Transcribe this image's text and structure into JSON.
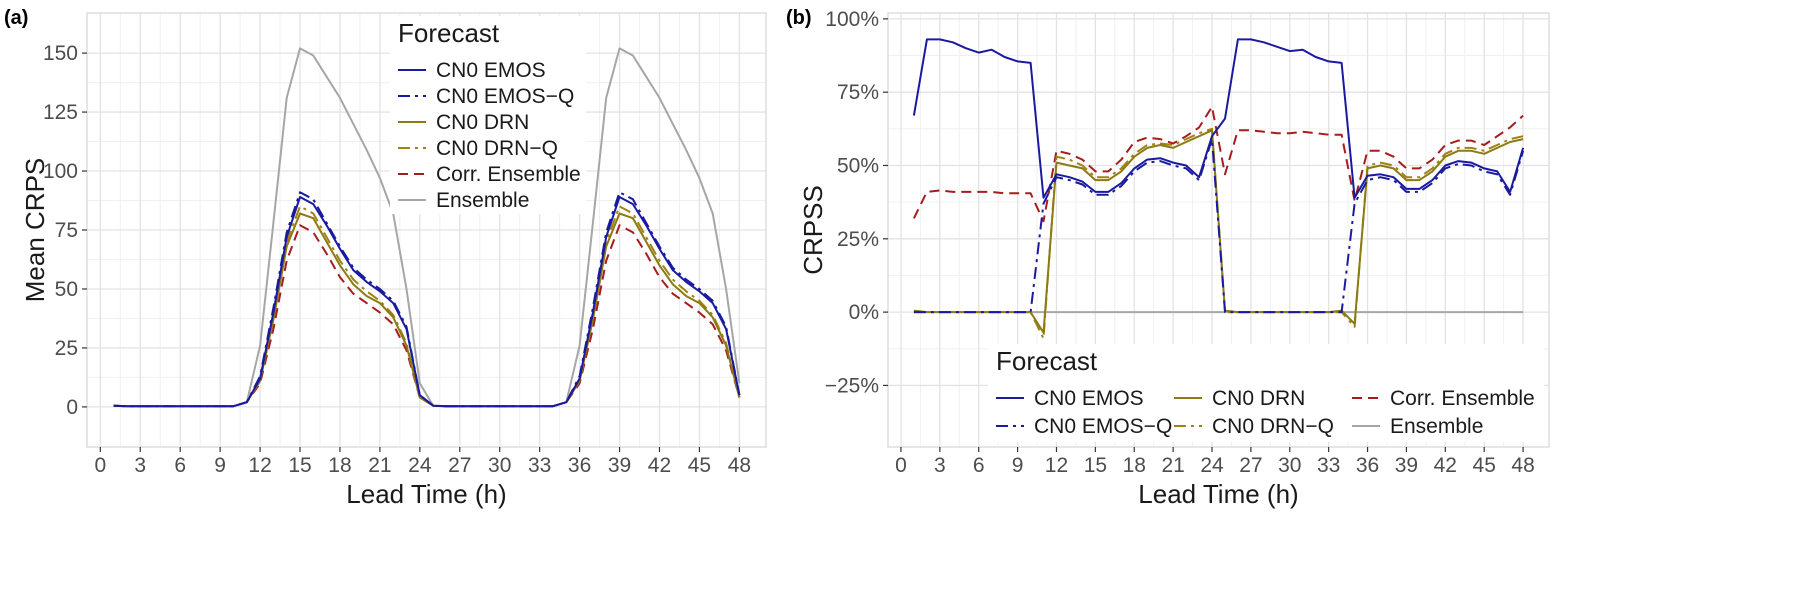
{
  "chart_data": [
    {
      "type": "line",
      "panel_label": "(a)",
      "xlabel": "Lead Time (h)",
      "ylabel": "Mean CRPS",
      "xlim": [
        -1,
        50
      ],
      "ylim": [
        -17,
        167
      ],
      "x_ticks": [
        0,
        3,
        6,
        9,
        12,
        15,
        18,
        21,
        24,
        27,
        30,
        33,
        36,
        39,
        42,
        45,
        48
      ],
      "y_ticks": [
        0,
        25,
        50,
        75,
        100,
        125,
        150
      ],
      "y_tick_labels": [
        "0",
        "25",
        "50",
        "75",
        "100",
        "125",
        "150"
      ],
      "grid": true,
      "legend": {
        "title": "Forecast",
        "placement": "top-right"
      },
      "x": [
        1,
        2,
        3,
        4,
        5,
        6,
        7,
        8,
        9,
        10,
        11,
        12,
        13,
        14,
        15,
        16,
        17,
        18,
        19,
        20,
        21,
        22,
        23,
        24,
        25,
        26,
        27,
        28,
        29,
        30,
        31,
        32,
        33,
        34,
        35,
        36,
        37,
        38,
        39,
        40,
        41,
        42,
        43,
        44,
        45,
        46,
        47,
        48
      ],
      "series": [
        {
          "name": "CN0 EMOS",
          "color": "#1a1aa0",
          "dash": "solid",
          "values": [
            0.5,
            0.3,
            0.3,
            0.3,
            0.3,
            0.3,
            0.3,
            0.3,
            0.3,
            0.3,
            2,
            12,
            40,
            72,
            89,
            86,
            77,
            67,
            58,
            53,
            49,
            44,
            33,
            5,
            0.5,
            0.3,
            0.3,
            0.3,
            0.3,
            0.3,
            0.3,
            0.3,
            0.3,
            0.3,
            2,
            12,
            40,
            72,
            89,
            86,
            77,
            67,
            58,
            53,
            49,
            44,
            33,
            5
          ]
        },
        {
          "name": "CN0 EMOS-Q",
          "color": "#1a1aa0",
          "dash": "dashdot",
          "values": [
            0.5,
            0.3,
            0.3,
            0.3,
            0.3,
            0.3,
            0.3,
            0.3,
            0.3,
            0.3,
            2,
            13,
            42,
            74,
            91,
            88,
            78,
            68,
            59,
            54,
            50,
            45,
            34,
            5,
            0.5,
            0.3,
            0.3,
            0.3,
            0.3,
            0.3,
            0.3,
            0.3,
            0.3,
            0.3,
            2,
            13,
            42,
            74,
            91,
            88,
            78,
            68,
            59,
            54,
            50,
            45,
            34,
            5
          ]
        },
        {
          "name": "CN0 DRN",
          "color": "#8c7a12",
          "dash": "solid",
          "values": [
            0.5,
            0.3,
            0.3,
            0.3,
            0.3,
            0.3,
            0.3,
            0.3,
            0.3,
            0.3,
            2,
            11,
            37,
            68,
            82,
            80,
            70,
            60,
            52,
            47,
            44,
            38,
            26,
            4,
            0.5,
            0.3,
            0.3,
            0.3,
            0.3,
            0.3,
            0.3,
            0.3,
            0.3,
            0.3,
            2,
            11,
            37,
            68,
            82,
            80,
            70,
            60,
            52,
            47,
            44,
            38,
            26,
            4
          ]
        },
        {
          "name": "CN0 DRN-Q",
          "color": "#a08214",
          "dash": "dashdot",
          "values": [
            0.5,
            0.3,
            0.3,
            0.3,
            0.3,
            0.3,
            0.3,
            0.3,
            0.3,
            0.3,
            2,
            12,
            39,
            70,
            85,
            82,
            72,
            62,
            54,
            49,
            45,
            39,
            27,
            4,
            0.5,
            0.3,
            0.3,
            0.3,
            0.3,
            0.3,
            0.3,
            0.3,
            0.3,
            0.3,
            2,
            12,
            39,
            70,
            85,
            82,
            72,
            62,
            54,
            49,
            45,
            39,
            27,
            4
          ]
        },
        {
          "name": "Corr. Ensemble",
          "color": "#a51d1d",
          "dash": "dashed",
          "values": [
            0.5,
            0.3,
            0.3,
            0.3,
            0.3,
            0.3,
            0.3,
            0.3,
            0.3,
            0.3,
            2,
            10,
            33,
            62,
            77,
            74,
            65,
            55,
            48,
            44,
            40,
            35,
            24,
            4,
            0.5,
            0.3,
            0.3,
            0.3,
            0.3,
            0.3,
            0.3,
            0.3,
            0.3,
            0.3,
            2,
            10,
            33,
            62,
            77,
            74,
            65,
            55,
            48,
            44,
            40,
            35,
            24,
            4
          ]
        },
        {
          "name": "Ensemble",
          "color": "#a6a6a6",
          "dash": "solid",
          "values": [
            0.5,
            0.3,
            0.3,
            0.3,
            0.3,
            0.3,
            0.3,
            0.3,
            0.3,
            0.3,
            2,
            26,
            78,
            131,
            152,
            149,
            140,
            131,
            120,
            109,
            97,
            82,
            50,
            10,
            0.5,
            0.3,
            0.3,
            0.3,
            0.3,
            0.3,
            0.3,
            0.3,
            0.3,
            0.3,
            2,
            26,
            78,
            131,
            152,
            149,
            140,
            131,
            120,
            109,
            97,
            82,
            50,
            10
          ]
        }
      ]
    },
    {
      "type": "line",
      "panel_label": "(b)",
      "xlabel": "Lead Time (h)",
      "ylabel": "CRPSS",
      "xlim": [
        -1,
        50
      ],
      "ylim": [
        -0.46,
        1.02
      ],
      "x_ticks": [
        0,
        3,
        6,
        9,
        12,
        15,
        18,
        21,
        24,
        27,
        30,
        33,
        36,
        39,
        42,
        45,
        48
      ],
      "y_ticks": [
        -0.25,
        0,
        0.25,
        0.5,
        0.75,
        1.0
      ],
      "y_tick_labels": [
        "−25%",
        "0%",
        "25%",
        "50%",
        "75%",
        "100%"
      ],
      "grid": true,
      "legend": {
        "title": "Forecast",
        "placement": "bottom-right"
      },
      "x": [
        1,
        2,
        3,
        4,
        5,
        6,
        7,
        8,
        9,
        10,
        11,
        12,
        13,
        14,
        15,
        16,
        17,
        18,
        19,
        20,
        21,
        22,
        23,
        24,
        25,
        26,
        27,
        28,
        29,
        30,
        31,
        32,
        33,
        34,
        35,
        36,
        37,
        38,
        39,
        40,
        41,
        42,
        43,
        44,
        45,
        46,
        47,
        48
      ],
      "series": [
        {
          "name": "CN0 EMOS",
          "color": "#1a1aa0",
          "dash": "solid",
          "values": [
            0.67,
            0.93,
            0.93,
            0.92,
            0.9,
            0.885,
            0.895,
            0.87,
            0.855,
            0.85,
            0.39,
            0.47,
            0.46,
            0.445,
            0.41,
            0.41,
            0.44,
            0.49,
            0.52,
            0.525,
            0.51,
            0.5,
            0.46,
            0.6,
            0.66,
            0.93,
            0.93,
            0.92,
            0.905,
            0.89,
            0.895,
            0.87,
            0.855,
            0.85,
            0.39,
            0.465,
            0.47,
            0.46,
            0.42,
            0.42,
            0.45,
            0.5,
            0.515,
            0.51,
            0.49,
            0.48,
            0.41,
            0.56
          ]
        },
        {
          "name": "CN0 EMOS-Q",
          "color": "#1a1aa0",
          "dash": "dashdot",
          "values": [
            0,
            0,
            0,
            0,
            0,
            0,
            0,
            0,
            0,
            0,
            0.37,
            0.46,
            0.45,
            0.435,
            0.4,
            0.4,
            0.43,
            0.48,
            0.51,
            0.515,
            0.5,
            0.49,
            0.45,
            0.59,
            0,
            0,
            0,
            0,
            0,
            0,
            0,
            0,
            0,
            0,
            0.37,
            0.45,
            0.46,
            0.45,
            0.41,
            0.41,
            0.44,
            0.49,
            0.505,
            0.5,
            0.48,
            0.47,
            0.4,
            0.55
          ]
        },
        {
          "name": "CN0 DRN",
          "color": "#8c7a12",
          "dash": "solid",
          "values": [
            0.005,
            0,
            0,
            0,
            0,
            0,
            0,
            0,
            0,
            0,
            -0.07,
            0.51,
            0.5,
            0.49,
            0.45,
            0.45,
            0.48,
            0.53,
            0.56,
            0.57,
            0.56,
            0.58,
            0.6,
            0.62,
            0.005,
            0,
            0,
            0,
            0,
            0,
            0,
            0,
            0,
            0.005,
            -0.04,
            0.49,
            0.5,
            0.49,
            0.45,
            0.45,
            0.48,
            0.53,
            0.55,
            0.55,
            0.54,
            0.56,
            0.58,
            0.59
          ]
        },
        {
          "name": "CN0 DRN-Q",
          "color": "#a08214",
          "dash": "dashdot",
          "values": [
            0,
            0,
            0,
            0,
            0,
            0,
            0,
            0,
            0,
            0,
            -0.09,
            0.53,
            0.52,
            0.5,
            0.46,
            0.46,
            0.49,
            0.54,
            0.57,
            0.575,
            0.57,
            0.59,
            0.61,
            0.625,
            0,
            0,
            0,
            0,
            0,
            0,
            0,
            0,
            0,
            0,
            -0.05,
            0.5,
            0.51,
            0.5,
            0.46,
            0.46,
            0.49,
            0.54,
            0.56,
            0.56,
            0.55,
            0.57,
            0.59,
            0.6
          ]
        },
        {
          "name": "Corr. Ensemble",
          "color": "#a51d1d",
          "dash": "dashed",
          "values": [
            0.32,
            0.41,
            0.415,
            0.41,
            0.41,
            0.41,
            0.41,
            0.405,
            0.405,
            0.405,
            0.31,
            0.55,
            0.54,
            0.52,
            0.48,
            0.48,
            0.52,
            0.58,
            0.595,
            0.59,
            0.575,
            0.6,
            0.63,
            0.7,
            0.47,
            0.62,
            0.62,
            0.615,
            0.61,
            0.61,
            0.615,
            0.61,
            0.605,
            0.605,
            0.38,
            0.55,
            0.55,
            0.53,
            0.49,
            0.49,
            0.52,
            0.57,
            0.585,
            0.585,
            0.57,
            0.6,
            0.63,
            0.67
          ]
        },
        {
          "name": "Ensemble",
          "color": "#a6a6a6",
          "dash": "solid",
          "values": [
            0,
            0,
            0,
            0,
            0,
            0,
            0,
            0,
            0,
            0,
            0,
            0,
            0,
            0,
            0,
            0,
            0,
            0,
            0,
            0,
            0,
            0,
            0,
            0,
            0,
            0,
            0,
            0,
            0,
            0,
            0,
            0,
            0,
            0,
            0,
            0,
            0,
            0,
            0,
            0,
            0,
            0,
            0,
            0,
            0,
            0,
            0,
            0
          ]
        }
      ]
    }
  ]
}
